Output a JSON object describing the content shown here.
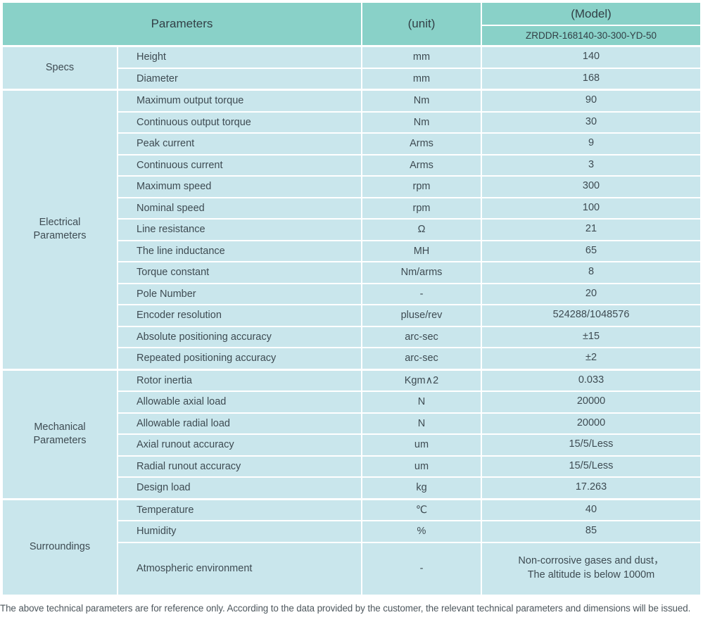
{
  "header": {
    "parameters_label": "Parameters",
    "unit_label": "(unit)",
    "model_label": "(Model)",
    "model_value": "ZRDDR-168140-30-300-YD-50"
  },
  "colors": {
    "header_bg": "#89d1c8",
    "cell_bg": "#c9e6ec",
    "text": "#3e4b52"
  },
  "sections": [
    {
      "name": "Specs",
      "rows": [
        {
          "param": "Height",
          "unit": "mm",
          "value": "140"
        },
        {
          "param": "Diameter",
          "unit": "mm",
          "value": "168"
        }
      ]
    },
    {
      "name": "Electrical\nParameters",
      "rows": [
        {
          "param": "Maximum output torque",
          "unit": "Nm",
          "value": "90"
        },
        {
          "param": "Continuous output torque",
          "unit": "Nm",
          "value": "30"
        },
        {
          "param": "Peak current",
          "unit": "Arms",
          "value": "9"
        },
        {
          "param": "Continuous current",
          "unit": "Arms",
          "value": "3"
        },
        {
          "param": "Maximum speed",
          "unit": "rpm",
          "value": "300"
        },
        {
          "param": "Nominal speed",
          "unit": "rpm",
          "value": "100"
        },
        {
          "param": "Line resistance",
          "unit": "Ω",
          "value": "21"
        },
        {
          "param": "The line inductance",
          "unit": "MH",
          "value": "65"
        },
        {
          "param": "Torque constant",
          "unit": "Nm/arms",
          "value": "8"
        },
        {
          "param": "Pole Number",
          "unit": "-",
          "value": "20"
        },
        {
          "param": "Encoder resolution",
          "unit": "pluse/rev",
          "value": "524288/1048576"
        },
        {
          "param": "Absolute positioning accuracy",
          "unit": "arc-sec",
          "value": "±15"
        },
        {
          "param": "Repeated positioning accuracy",
          "unit": "arc-sec",
          "value": "±2"
        }
      ]
    },
    {
      "name": "Mechanical\nParameters",
      "rows": [
        {
          "param": "Rotor inertia",
          "unit": "Kgm∧2",
          "value": "0.033"
        },
        {
          "param": "Allowable axial load",
          "unit": "N",
          "value": "20000"
        },
        {
          "param": "Allowable radial load",
          "unit": "N",
          "value": "20000"
        },
        {
          "param": "Axial runout accuracy",
          "unit": "um",
          "value": "15/5/Less"
        },
        {
          "param": "Radial runout accuracy",
          "unit": "um",
          "value": "15/5/Less"
        },
        {
          "param": "Design load",
          "unit": "kg",
          "value": "17.263"
        }
      ]
    },
    {
      "name": "Surroundings",
      "rows": [
        {
          "param": "Temperature",
          "unit": "℃",
          "value": "40"
        },
        {
          "param": "Humidity",
          "unit": "%",
          "value": "85"
        },
        {
          "param": "Atmospheric environment",
          "unit": "-",
          "value": "Non-corrosive gases and dust，\nThe altitude is below 1000m"
        }
      ]
    }
  ],
  "footer": {
    "note": "The above technical parameters are for reference only. According to the data provided by the customer, the relevant technical parameters and dimensions will be issued."
  }
}
